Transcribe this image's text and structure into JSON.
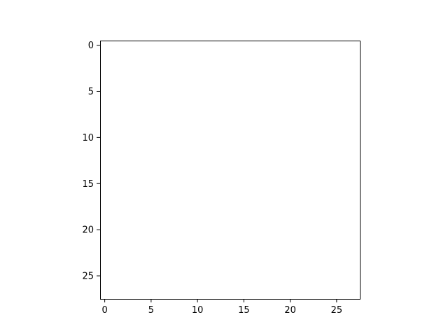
{
  "chart_data": {
    "type": "heatmap",
    "colormap": "gray_r",
    "vmin": 0,
    "vmax": 255,
    "xlim": [
      -0.5,
      27.5
    ],
    "ylim": [
      27.5,
      -0.5
    ],
    "x_ticks": [
      0,
      5,
      10,
      15,
      20,
      25
    ],
    "y_ticks": [
      0,
      5,
      10,
      15,
      20,
      25
    ],
    "grid": false,
    "encoding": "each string is one image row; characters 0-9 are intensity levels (0 = white, 9 = black)",
    "rows": [
      "0000000000000000000000000000",
      "0000000000000000000000000000",
      "0000000000000000000000000000",
      "0000000000000000000000000000",
      "0000000000000000000000000000",
      "0000000000000000000000000000",
      "0000000000000000000000000000",
      "0000000000000000000000000000",
      "0000000000000000000000000000",
      "0000000000000000000000000000",
      "0000000000000000000000000000",
      "0000000000000000000000000000",
      "0000000000000000000000000000",
      "0000000000000000000000000000",
      "0000000000000000000000000000",
      "0000000000000000000000000000",
      "0000000000000000000000000000",
      "0000000000000000000000000000",
      "0000000000000000000000000000",
      "0000000000000000000000000000",
      "0000000000000000000000000000",
      "0000000000000000000000000000",
      "0000000000000000000000000000",
      "0000000000000000000000000000",
      "0000000000000000000000000000",
      "0000000000000000000000000000",
      "0000000000000000000000000000",
      "0000000000000000000000000000"
    ]
  }
}
